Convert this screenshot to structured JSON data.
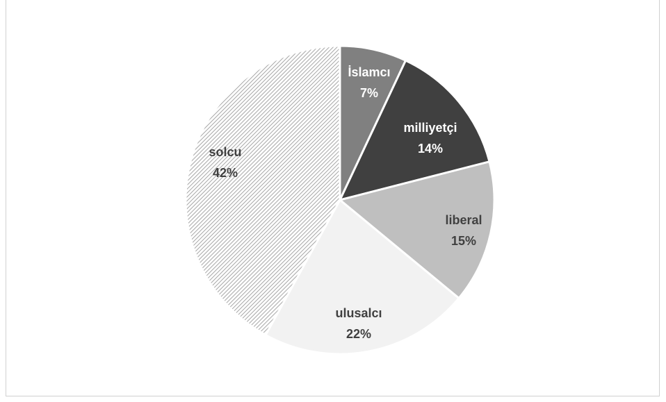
{
  "chart_data": {
    "type": "pie",
    "title": "",
    "slices": [
      {
        "label": "İslamcı",
        "value": 7,
        "pct_text": "7%",
        "fill": "#808080",
        "text_color": "#ffffff"
      },
      {
        "label": "milliyetçi",
        "value": 14,
        "pct_text": "14%",
        "fill": "#404040",
        "text_color": "#ffffff"
      },
      {
        "label": "liberal",
        "value": 15,
        "pct_text": "15%",
        "fill": "#bfbfbf",
        "text_color": "#404040"
      },
      {
        "label": "ulusalcı",
        "value": 22,
        "pct_text": "22%",
        "fill": "#f2f2f2",
        "text_color": "#404040"
      },
      {
        "label": "solcu",
        "value": 42,
        "pct_text": "42%",
        "fill": "hatch",
        "text_color": "#404040"
      }
    ],
    "start_angle": "12 o'clock, clockwise",
    "legend": "none"
  }
}
